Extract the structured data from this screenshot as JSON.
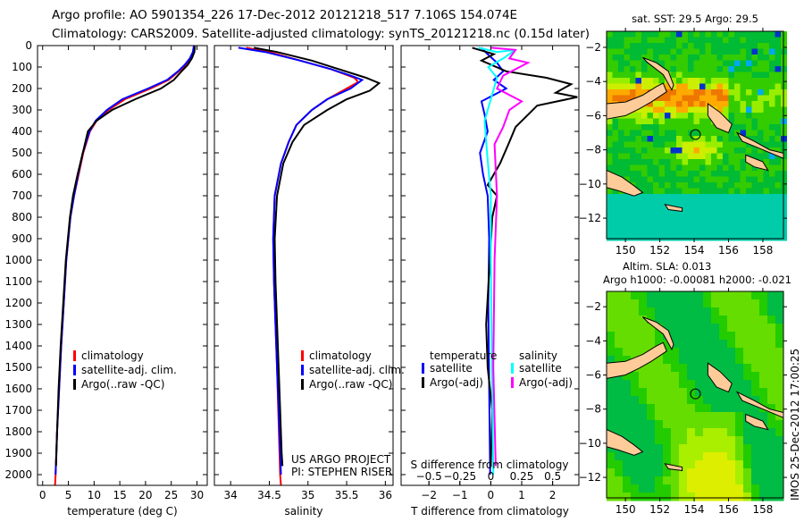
{
  "title_line1": "Argo profile: AO 5901354_226 17-Dec-2012 20121218_517 7.106S 154.074E",
  "title_line2": "Climatology: CARS2009. Satellite-adjusted climatology: synTS_20121218.nc (0.15d later)",
  "side_text": "IMOS 25-Dec-2012 17:00:25",
  "colors": {
    "climatology": "#ff0000",
    "satellite": "#0000ff",
    "argo": "#000000",
    "sal_satellite": "#00ffff",
    "sal_argo": "#ff00ff",
    "land": "#ffcc99"
  },
  "chart_data": [
    {
      "type": "line",
      "id": "temperature",
      "xlabel": "temperature (deg C)",
      "ylabel": "",
      "xlim": [
        -1,
        32
      ],
      "ylim": [
        2050,
        0
      ],
      "xticks": [
        0,
        5,
        10,
        15,
        20,
        25,
        30
      ],
      "yticks": [
        0,
        100,
        200,
        300,
        400,
        500,
        600,
        700,
        800,
        900,
        1000,
        1100,
        1200,
        1300,
        1400,
        1500,
        1600,
        1700,
        1800,
        1900,
        2000
      ],
      "legend": [
        "climatology",
        "satellite-adj. clim.",
        "Argo(..raw -QC)"
      ],
      "series": [
        {
          "name": "climatology",
          "color": "#ff0000",
          "points": [
            [
              29.6,
              0
            ],
            [
              29.4,
              30
            ],
            [
              28.8,
              60
            ],
            [
              27.8,
              90
            ],
            [
              26.5,
              120
            ],
            [
              24.5,
              160
            ],
            [
              21,
              200
            ],
            [
              16,
              250
            ],
            [
              12.8,
              300
            ],
            [
              10.5,
              350
            ],
            [
              9.2,
              400
            ],
            [
              7.9,
              500
            ],
            [
              7,
              600
            ],
            [
              6.1,
              700
            ],
            [
              5.4,
              800
            ],
            [
              5,
              900
            ],
            [
              4.6,
              1000
            ],
            [
              4.1,
              1200
            ],
            [
              3.6,
              1400
            ],
            [
              3.2,
              1600
            ],
            [
              2.8,
              1800
            ],
            [
              2.5,
              2000
            ],
            [
              2.4,
              2050
            ]
          ]
        },
        {
          "name": "satellite-adj. clim.",
          "color": "#0000ff",
          "points": [
            [
              29.4,
              0
            ],
            [
              29.2,
              30
            ],
            [
              28.6,
              60
            ],
            [
              27.6,
              90
            ],
            [
              26.3,
              120
            ],
            [
              24.2,
              160
            ],
            [
              20.5,
              200
            ],
            [
              15.5,
              250
            ],
            [
              12.5,
              300
            ],
            [
              10.3,
              350
            ],
            [
              9.1,
              400
            ],
            [
              7.8,
              500
            ],
            [
              6.9,
              600
            ],
            [
              6.1,
              700
            ],
            [
              5.4,
              800
            ],
            [
              5,
              900
            ],
            [
              4.6,
              1000
            ],
            [
              4.1,
              1200
            ],
            [
              3.6,
              1400
            ],
            [
              3.2,
              1600
            ],
            [
              2.8,
              1800
            ],
            [
              2.5,
              2000
            ]
          ]
        },
        {
          "name": "Argo(..raw -QC)",
          "color": "#000000",
          "points": [
            [
              29.6,
              5
            ],
            [
              29.5,
              30
            ],
            [
              29,
              60
            ],
            [
              28.2,
              90
            ],
            [
              27,
              120
            ],
            [
              25.5,
              160
            ],
            [
              23,
              200
            ],
            [
              18,
              250
            ],
            [
              13.5,
              300
            ],
            [
              10.5,
              350
            ],
            [
              8.8,
              400
            ],
            [
              7.8,
              500
            ],
            [
              6.8,
              600
            ],
            [
              5.9,
              700
            ],
            [
              5.3,
              800
            ],
            [
              4.9,
              900
            ],
            [
              4.5,
              1000
            ],
            [
              4,
              1200
            ],
            [
              3.5,
              1400
            ],
            [
              3.1,
              1600
            ],
            [
              2.8,
              1800
            ],
            [
              2.6,
              1960
            ]
          ]
        }
      ]
    },
    {
      "type": "line",
      "id": "salinity",
      "xlabel": "salinity",
      "ylabel": "",
      "xlim": [
        33.79,
        36.1
      ],
      "ylim": [
        2050,
        0
      ],
      "xticks": [
        34,
        34.5,
        35,
        35.5,
        36
      ],
      "legend": [
        "climatology",
        "satellite-adj. clim.",
        "Argo(..raw -QC)"
      ],
      "annotations": [
        "US ARGO PROJECT",
        "PI: STEPHEN RISER"
      ],
      "series": [
        {
          "name": "climatology",
          "color": "#ff0000",
          "points": [
            [
              34.2,
              10
            ],
            [
              34.5,
              30
            ],
            [
              34.9,
              70
            ],
            [
              35.3,
              110
            ],
            [
              35.6,
              150
            ],
            [
              35.65,
              170
            ],
            [
              35.5,
              200
            ],
            [
              35.25,
              250
            ],
            [
              35.05,
              300
            ],
            [
              34.85,
              370
            ],
            [
              34.75,
              450
            ],
            [
              34.65,
              550
            ],
            [
              34.57,
              700
            ],
            [
              34.55,
              900
            ],
            [
              34.56,
              1100
            ],
            [
              34.6,
              1500
            ],
            [
              34.64,
              2000
            ],
            [
              34.65,
              2050
            ]
          ]
        },
        {
          "name": "satellite-adj. clim.",
          "color": "#0000ff",
          "points": [
            [
              34.1,
              10
            ],
            [
              34.45,
              30
            ],
            [
              34.9,
              70
            ],
            [
              35.3,
              110
            ],
            [
              35.55,
              140
            ],
            [
              35.7,
              160
            ],
            [
              35.55,
              200
            ],
            [
              35.25,
              250
            ],
            [
              35.05,
              300
            ],
            [
              34.85,
              370
            ],
            [
              34.75,
              450
            ],
            [
              34.65,
              550
            ],
            [
              34.57,
              700
            ],
            [
              34.55,
              900
            ],
            [
              34.56,
              1100
            ],
            [
              34.6,
              1500
            ],
            [
              34.64,
              1900
            ],
            [
              34.65,
              2000
            ]
          ]
        },
        {
          "name": "Argo(..raw -QC)",
          "color": "#000000",
          "points": [
            [
              34.3,
              10
            ],
            [
              34.6,
              30
            ],
            [
              35.05,
              70
            ],
            [
              35.4,
              110
            ],
            [
              35.75,
              150
            ],
            [
              35.92,
              175
            ],
            [
              35.8,
              210
            ],
            [
              35.5,
              250
            ],
            [
              35.25,
              300
            ],
            [
              34.95,
              370
            ],
            [
              34.8,
              450
            ],
            [
              34.68,
              550
            ],
            [
              34.6,
              700
            ],
            [
              34.57,
              900
            ],
            [
              34.58,
              1100
            ],
            [
              34.62,
              1500
            ],
            [
              34.66,
              1900
            ],
            [
              34.67,
              1960
            ]
          ]
        }
      ]
    },
    {
      "type": "line",
      "id": "difference",
      "xlabel": "T difference from climatology",
      "x2label": "S difference from climatology",
      "xlim": [
        -2.9,
        2.85
      ],
      "ylim": [
        2050,
        0
      ],
      "xticks": [
        -2,
        -1,
        0,
        1,
        2
      ],
      "x2ticks": [
        -0.5,
        -0.25,
        0,
        0.25,
        0.5
      ],
      "x2lim": [
        -0.725,
        0.712
      ],
      "legend_temperature": {
        "title": "temperature",
        "items": [
          "satellite",
          "Argo(-adj)"
        ]
      },
      "legend_salinity": {
        "title": "salinity",
        "items": [
          "satellite",
          "Argo(-adj)"
        ]
      },
      "series": [
        {
          "name": "T satellite",
          "axis": "T",
          "color": "#0000ff",
          "points": [
            [
              -0.3,
              10
            ],
            [
              -0.1,
              40
            ],
            [
              0.2,
              80
            ],
            [
              0.4,
              120
            ],
            [
              0.1,
              160
            ],
            [
              0.5,
              200
            ],
            [
              -0.3,
              260
            ],
            [
              -0.2,
              320
            ],
            [
              -0.1,
              400
            ],
            [
              -0.35,
              500
            ],
            [
              -0.25,
              600
            ],
            [
              -0.1,
              700
            ],
            [
              -0.05,
              900
            ],
            [
              -0.08,
              1200
            ],
            [
              -0.05,
              1600
            ],
            [
              -0.02,
              2000
            ]
          ]
        },
        {
          "name": "T Argo(-adj)",
          "axis": "T",
          "color": "#000000",
          "points": [
            [
              -0.6,
              10
            ],
            [
              0.1,
              40
            ],
            [
              -0.3,
              70
            ],
            [
              0.5,
              120
            ],
            [
              1.8,
              150
            ],
            [
              2.6,
              180
            ],
            [
              2.1,
              220
            ],
            [
              2.8,
              240
            ],
            [
              1.5,
              280
            ],
            [
              0.8,
              380
            ],
            [
              0.6,
              450
            ],
            [
              0.3,
              550
            ],
            [
              -0.1,
              650
            ],
            [
              0.2,
              700
            ],
            [
              0.05,
              800
            ],
            [
              -0.15,
              1300
            ],
            [
              -0.1,
              1500
            ],
            [
              0.05,
              1700
            ],
            [
              0,
              1960
            ]
          ]
        },
        {
          "name": "S satellite",
          "axis": "S",
          "color": "#00ffff",
          "points": [
            [
              -0.1,
              10
            ],
            [
              0.05,
              30
            ],
            [
              0.2,
              20
            ],
            [
              0.1,
              60
            ],
            [
              -0.02,
              100
            ],
            [
              0.05,
              150
            ],
            [
              0,
              250
            ],
            [
              -0.05,
              350
            ],
            [
              -0.03,
              500
            ],
            [
              0,
              700
            ],
            [
              0,
              1000
            ],
            [
              0.01,
              1500
            ],
            [
              0.02,
              2000
            ]
          ]
        },
        {
          "name": "S Argo(-adj)",
          "axis": "S",
          "color": "#ff00ff",
          "points": [
            [
              0.0,
              10
            ],
            [
              0.2,
              20
            ],
            [
              0.15,
              60
            ],
            [
              0.3,
              80
            ],
            [
              0.1,
              140
            ],
            [
              0.05,
              200
            ],
            [
              0.25,
              260
            ],
            [
              0.15,
              300
            ],
            [
              0.1,
              380
            ],
            [
              0.03,
              460
            ],
            [
              0.05,
              700
            ],
            [
              0.03,
              1000
            ],
            [
              0.02,
              1500
            ],
            [
              0.04,
              1960
            ]
          ]
        }
      ]
    },
    {
      "type": "heatmap",
      "id": "sst_map",
      "title": "sat. SST: 29.5 Argo: 29.5",
      "xlim": [
        148.9,
        159.2
      ],
      "ylim": [
        -13.2,
        -1.06
      ],
      "xticks": [
        150,
        152,
        154,
        156,
        158
      ],
      "yticks": [
        -2,
        -4,
        -6,
        -8,
        -10,
        -12
      ],
      "marker": [
        154.074,
        -7.106
      ]
    },
    {
      "type": "heatmap",
      "id": "sla_map",
      "title_line1": "Altim. SLA: 0.013",
      "title_line2": "Argo h1000: -0.00081 h2000: -0.021",
      "xlim": [
        148.9,
        159.2
      ],
      "ylim": [
        -13.2,
        -1.1
      ],
      "xticks": [
        150,
        152,
        154,
        156,
        158
      ],
      "yticks": [
        -2,
        -4,
        -6,
        -8,
        -10,
        -12
      ],
      "marker": [
        154.074,
        -7.106
      ]
    }
  ]
}
